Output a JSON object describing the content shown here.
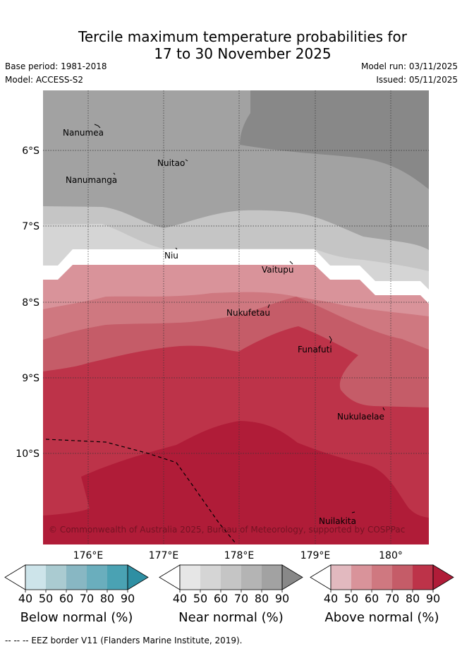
{
  "title": {
    "line1": "Tercile maximum temperature probabilities for",
    "line2": "17 to 30 November 2025"
  },
  "meta": {
    "base_period": "Base period: 1981-2018",
    "model": "Model: ACCESS-S2",
    "model_run": "Model run: 03/11/2025",
    "issued": "Issued: 05/11/2025"
  },
  "axes": {
    "lat_labels": [
      "6°S",
      "7°S",
      "8°S",
      "9°S",
      "10°S"
    ],
    "lon_labels": [
      "176°E",
      "177°E",
      "178°E",
      "179°E",
      "180°"
    ]
  },
  "places": [
    "Nanumea",
    "Nuitao",
    "Nanumanga",
    "Niu",
    "Vaitupu",
    "Nukufetau",
    "Funafuti",
    "Nukulaelae",
    "Nuilakita"
  ],
  "copyright": "© Commonwealth of Australia 2025, Bureau of Meteorology, supported by COSPPac",
  "colorbars": [
    {
      "title": "Below normal (%)",
      "ticks": [
        "40",
        "50",
        "60",
        "70",
        "80",
        "90"
      ],
      "colors": [
        "#ffffff",
        "#cde4ea",
        "#aacbd1",
        "#88b7c3",
        "#6aaebd",
        "#4aa2b3",
        "#2e8fa3"
      ]
    },
    {
      "title": "Near normal (%)",
      "ticks": [
        "40",
        "50",
        "60",
        "70",
        "80",
        "90"
      ],
      "colors": [
        "#ffffff",
        "#e6e6e6",
        "#d5d5d5",
        "#c5c5c5",
        "#b4b4b4",
        "#a2a2a2",
        "#888888"
      ]
    },
    {
      "title": "Above normal (%)",
      "ticks": [
        "40",
        "50",
        "60",
        "70",
        "80",
        "90"
      ],
      "colors": [
        "#ffffff",
        "#e2b9bf",
        "#d9939a",
        "#cf7880",
        "#c55c68",
        "#bd3349",
        "#b01c38"
      ]
    }
  ],
  "footer": "-- -- -- EEZ border V11 (Flanders Marine Institute, 2019)."
}
